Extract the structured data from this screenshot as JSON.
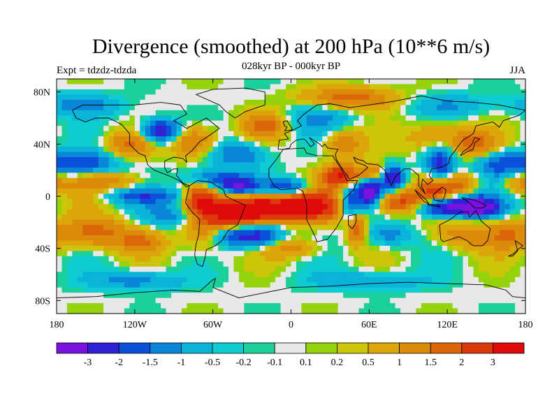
{
  "chart_data": {
    "type": "heatmap",
    "title": "Divergence (smoothed) at 200 hPa (10**6 m/s)",
    "subtitle": "028kyr BP - 000kyr BP",
    "left_label": "Expt = tdzdz-tdzda",
    "right_label": "JJA",
    "x_range": [
      -180,
      180
    ],
    "y_range": [
      -90,
      90
    ],
    "x_ticks": [
      {
        "value": -180,
        "label": "180"
      },
      {
        "value": -120,
        "label": "120W"
      },
      {
        "value": -60,
        "label": "60W"
      },
      {
        "value": 0,
        "label": "0"
      },
      {
        "value": 60,
        "label": "60E"
      },
      {
        "value": 120,
        "label": "120E"
      },
      {
        "value": 180,
        "label": "180"
      }
    ],
    "y_ticks": [
      {
        "value": 80,
        "label": "80N"
      },
      {
        "value": 40,
        "label": "40N"
      },
      {
        "value": 0,
        "label": "0"
      },
      {
        "value": -40,
        "label": "40S"
      },
      {
        "value": -80,
        "label": "80S"
      }
    ],
    "colorbar": {
      "colors": [
        "#7a12e0",
        "#2f22d6",
        "#0a50d8",
        "#0a86d8",
        "#0ab4d8",
        "#0fccd2",
        "#1bd09a",
        "#e8e8e8",
        "#96d20a",
        "#cec40a",
        "#dca60a",
        "#dc8a0a",
        "#dc660a",
        "#dc3a0a",
        "#e00a0a"
      ],
      "labels": [
        "-3",
        "-2",
        "-1.5",
        "-1",
        "-0.5",
        "-0.2",
        "-0.1",
        "0.1",
        "0.2",
        "0.5",
        "1",
        "1.5",
        "2",
        "3"
      ]
    },
    "features": [
      {
        "lon": -20,
        "lat": -8,
        "value": 3.0,
        "sx": 22,
        "sy": 7
      },
      {
        "lon": 20,
        "lat": -8,
        "value": 2.0,
        "sx": 18,
        "sy": 8
      },
      {
        "lon": -40,
        "lat": -15,
        "value": 2.2,
        "sx": 16,
        "sy": 8
      },
      {
        "lon": -70,
        "lat": -3,
        "value": 2.0,
        "sx": 8,
        "sy": 8
      },
      {
        "lon": -65,
        "lat": -25,
        "value": 1.2,
        "sx": 12,
        "sy": 12
      },
      {
        "lon": -110,
        "lat": 0,
        "value": -1.2,
        "sx": 25,
        "sy": 4
      },
      {
        "lon": -60,
        "lat": 13,
        "value": -1.5,
        "sx": 15,
        "sy": 5
      },
      {
        "lon": -40,
        "lat": 8,
        "value": -2.2,
        "sx": 10,
        "sy": 5
      },
      {
        "lon": -3,
        "lat": 7,
        "value": -1.8,
        "sx": 12,
        "sy": 4
      },
      {
        "lon": -40,
        "lat": -30,
        "value": -2.2,
        "sx": 15,
        "sy": 6
      },
      {
        "lon": -20,
        "lat": -30,
        "value": -1.2,
        "sx": 10,
        "sy": 6
      },
      {
        "lon": -160,
        "lat": 25,
        "value": -1.8,
        "sx": 18,
        "sy": 6
      },
      {
        "lon": -140,
        "lat": 12,
        "value": 1.0,
        "sx": 20,
        "sy": 5
      },
      {
        "lon": -150,
        "lat": -28,
        "value": 1.5,
        "sx": 18,
        "sy": 8
      },
      {
        "lon": -115,
        "lat": -35,
        "value": 1.2,
        "sx": 12,
        "sy": 6
      },
      {
        "lon": -90,
        "lat": -15,
        "value": -1.0,
        "sx": 15,
        "sy": 6
      },
      {
        "lon": -100,
        "lat": 50,
        "value": -2.5,
        "sx": 10,
        "sy": 6
      },
      {
        "lon": -75,
        "lat": 42,
        "value": 1.5,
        "sx": 12,
        "sy": 8
      },
      {
        "lon": -125,
        "lat": 40,
        "value": 1.2,
        "sx": 12,
        "sy": 7
      },
      {
        "lon": -40,
        "lat": 32,
        "value": -1.2,
        "sx": 15,
        "sy": 7
      },
      {
        "lon": -20,
        "lat": 55,
        "value": 1.5,
        "sx": 12,
        "sy": 7
      },
      {
        "lon": 20,
        "lat": 60,
        "value": -0.8,
        "sx": 20,
        "sy": 8
      },
      {
        "lon": 45,
        "lat": 75,
        "value": 1.5,
        "sx": 25,
        "sy": 6
      },
      {
        "lon": 40,
        "lat": 40,
        "value": 1.2,
        "sx": 10,
        "sy": 8
      },
      {
        "lon": 60,
        "lat": 3,
        "value": -3.2,
        "sx": 6,
        "sy": 7
      },
      {
        "lon": 45,
        "lat": -5,
        "value": -2.0,
        "sx": 6,
        "sy": 10
      },
      {
        "lon": 78,
        "lat": 15,
        "value": -2.5,
        "sx": 6,
        "sy": 6
      },
      {
        "lon": 38,
        "lat": 15,
        "value": 2.5,
        "sx": 10,
        "sy": 6
      },
      {
        "lon": 62,
        "lat": 18,
        "value": 1.5,
        "sx": 8,
        "sy": 5
      },
      {
        "lon": 85,
        "lat": -5,
        "value": 2.5,
        "sx": 14,
        "sy": 6
      },
      {
        "lon": 50,
        "lat": -25,
        "value": 1.8,
        "sx": 5,
        "sy": 8
      },
      {
        "lon": 75,
        "lat": -30,
        "value": -1.0,
        "sx": 12,
        "sy": 6
      },
      {
        "lon": 120,
        "lat": -8,
        "value": -3.2,
        "sx": 20,
        "sy": 5
      },
      {
        "lon": 145,
        "lat": -8,
        "value": -2.0,
        "sx": 10,
        "sy": 5
      },
      {
        "lon": 115,
        "lat": 25,
        "value": -2.0,
        "sx": 8,
        "sy": 10
      },
      {
        "lon": 110,
        "lat": 5,
        "value": 1.5,
        "sx": 10,
        "sy": 7
      },
      {
        "lon": 130,
        "lat": 10,
        "value": 1.2,
        "sx": 10,
        "sy": 6
      },
      {
        "lon": 140,
        "lat": 40,
        "value": 1.5,
        "sx": 12,
        "sy": 8
      },
      {
        "lon": 160,
        "lat": 25,
        "value": -1.5,
        "sx": 14,
        "sy": 7
      },
      {
        "lon": 175,
        "lat": 10,
        "value": 1.0,
        "sx": 10,
        "sy": 6
      },
      {
        "lon": 165,
        "lat": -30,
        "value": 1.2,
        "sx": 14,
        "sy": 8
      },
      {
        "lon": 130,
        "lat": -30,
        "value": 1.0,
        "sx": 14,
        "sy": 7
      },
      {
        "lon": 110,
        "lat": 45,
        "value": 1.0,
        "sx": 14,
        "sy": 8
      },
      {
        "lon": 0,
        "lat": -40,
        "value": 1.0,
        "sx": 15,
        "sy": 5
      },
      {
        "lon": -160,
        "lat": 70,
        "value": -1.0,
        "sx": 20,
        "sy": 6
      },
      {
        "lon": -120,
        "lat": -65,
        "value": -1.0,
        "sx": 25,
        "sy": 5
      },
      {
        "lon": 60,
        "lat": -65,
        "value": -0.8,
        "sx": 30,
        "sy": 5
      },
      {
        "lon": 120,
        "lat": 70,
        "value": -0.8,
        "sx": 20,
        "sy": 6
      }
    ]
  }
}
